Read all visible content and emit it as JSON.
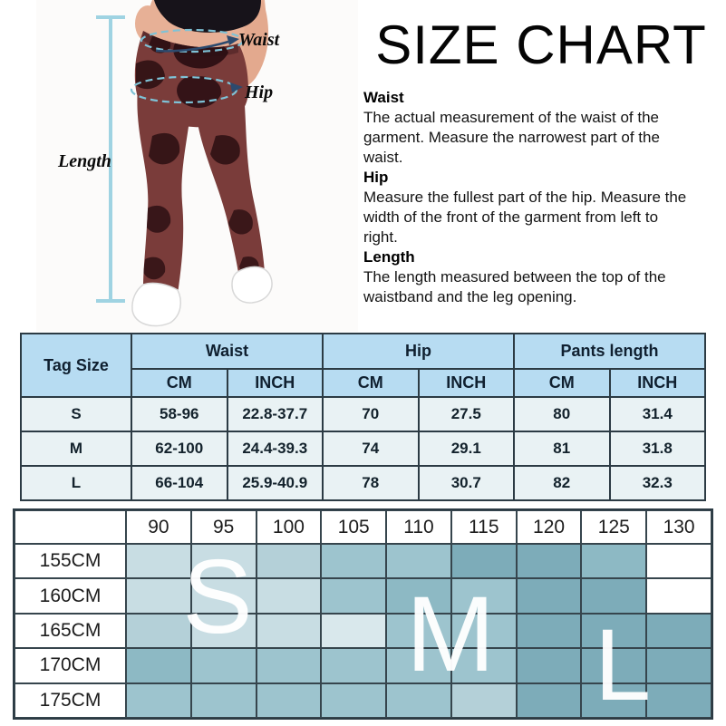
{
  "info": {
    "title": "SIZE CHART",
    "sections": [
      {
        "heading": "Waist",
        "body": "The actual measurement of the waist of the garment. Measure the narrowest part of the waist."
      },
      {
        "heading": "Hip",
        "body": "Measure the fullest part of the  hip. Measure the width of the front of the garment from left to right."
      },
      {
        "heading": "Length",
        "body": "The length measured between the top of the waistband and the leg opening."
      }
    ]
  },
  "figure": {
    "waist_label": "Waist",
    "hip_label": "Hip",
    "length_label": "Length",
    "annotation_color": "#9fd3e2",
    "ellipse_color": "#7ec2d6",
    "leggings_color": "#7a3c3a"
  },
  "size_table": {
    "corner_label": "Tag Size",
    "groups": [
      "Waist",
      "Hip",
      "Pants length"
    ],
    "units": [
      "CM",
      "INCH",
      "CM",
      "INCH",
      "CM",
      "INCH"
    ],
    "rows": [
      {
        "size": "S",
        "cells": [
          "58-96",
          "22.8-37.7",
          "70",
          "27.5",
          "80",
          "31.4"
        ]
      },
      {
        "size": "M",
        "cells": [
          "62-100",
          "24.4-39.3",
          "74",
          "29.1",
          "81",
          "31.8"
        ]
      },
      {
        "size": "L",
        "cells": [
          "66-104",
          "25.9-40.9",
          "78",
          "30.7",
          "82",
          "32.3"
        ]
      }
    ],
    "header_bg": "#b7dcf2",
    "cell_bg": "#e9f2f4"
  },
  "fit_grid": {
    "col_headers": [
      "90",
      "95",
      "100",
      "105",
      "110",
      "115",
      "120",
      "125",
      "130"
    ],
    "row_headers": [
      "155CM",
      "160CM",
      "165CM",
      "170CM",
      "175CM"
    ],
    "cells": [
      [
        "L2",
        "L2",
        "L3",
        "M1",
        "M1",
        "D1",
        "D1",
        "M2",
        "W"
      ],
      [
        "L2",
        "L2",
        "L2",
        "M1",
        "M2",
        "M1",
        "D1",
        "D1",
        "W"
      ],
      [
        "L3",
        "L2",
        "L2",
        "L1",
        "M1",
        "M1",
        "D1",
        "D1",
        "D1"
      ],
      [
        "M2",
        "M1",
        "M1",
        "M1",
        "M1",
        "M1",
        "D1",
        "D1",
        "D1"
      ],
      [
        "M1",
        "M1",
        "M1",
        "M1",
        "M1",
        "L3",
        "D1",
        "D1",
        "D1"
      ]
    ],
    "palette": {
      "W": "#ffffff",
      "L1": "#d9e8ec",
      "L2": "#c8dde3",
      "L3": "#b4d0d8",
      "M1": "#9dc4ce",
      "M2": "#8db9c4",
      "D1": "#7dacb9"
    },
    "letters": [
      "S",
      "M",
      "L"
    ]
  },
  "chart_data": [
    {
      "type": "table",
      "title": "SIZE CHART",
      "columns": [
        "Tag Size",
        "Waist CM",
        "Waist INCH",
        "Hip CM",
        "Hip INCH",
        "Pants length CM",
        "Pants length INCH"
      ],
      "rows": [
        [
          "S",
          "58-96",
          "22.8-37.7",
          "70",
          "27.5",
          "80",
          "31.4"
        ],
        [
          "M",
          "62-100",
          "24.4-39.3",
          "74",
          "29.1",
          "81",
          "31.8"
        ],
        [
          "L",
          "66-104",
          "25.9-40.9",
          "78",
          "30.7",
          "82",
          "32.3"
        ]
      ]
    },
    {
      "type": "heatmap",
      "x": [
        "90",
        "95",
        "100",
        "105",
        "110",
        "115",
        "120",
        "125",
        "130"
      ],
      "y": [
        "155CM",
        "160CM",
        "165CM",
        "170CM",
        "175CM"
      ],
      "values": [
        [
          "L2",
          "L2",
          "L3",
          "M1",
          "M1",
          "D1",
          "D1",
          "M2",
          "W"
        ],
        [
          "L2",
          "L2",
          "L2",
          "M1",
          "M2",
          "M1",
          "D1",
          "D1",
          "W"
        ],
        [
          "L3",
          "L2",
          "L2",
          "L1",
          "M1",
          "M1",
          "D1",
          "D1",
          "D1"
        ],
        [
          "M2",
          "M1",
          "M1",
          "M1",
          "M1",
          "M1",
          "D1",
          "D1",
          "D1"
        ],
        [
          "M1",
          "M1",
          "M1",
          "M1",
          "M1",
          "L3",
          "D1",
          "D1",
          "D1"
        ]
      ],
      "legend": [
        "S over 90-100 columns rows 155-165",
        "M over 105-115 columns rows 160-170",
        "L over 120-130 columns rows 165-175"
      ],
      "annotations": [
        "S",
        "M",
        "L"
      ]
    }
  ]
}
